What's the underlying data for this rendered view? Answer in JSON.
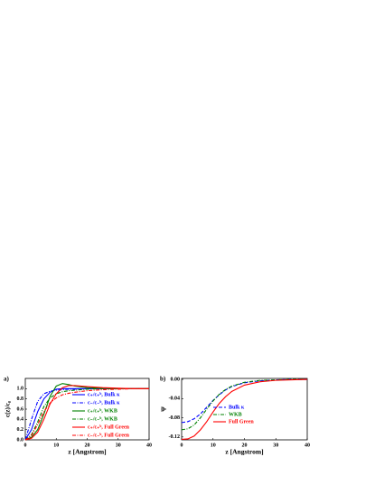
{
  "chart_data": [
    {
      "type": "line",
      "panel_label": "a)",
      "xlabel": "z [Angstrom]",
      "ylabel": "c(z)/c₀",
      "x": [
        0,
        2,
        4,
        6,
        8,
        10,
        12,
        14,
        16,
        20,
        25,
        30,
        35,
        40
      ],
      "xlim": [
        0,
        40
      ],
      "xticks": [
        0,
        10,
        20,
        30,
        40
      ],
      "ylim": [
        0,
        1.2
      ],
      "yticks": [
        {
          "value": 0,
          "label": "0.0"
        },
        0.2,
        0.4,
        0.6,
        0.8,
        {
          "value": 1,
          "label": "1.0"
        }
      ],
      "legend": "center",
      "series": [
        {
          "name": "c₊/c₊ᵇ, Bulk κ",
          "color": "#0000ff",
          "dash": "solid",
          "values": [
            0,
            0.2,
            0.55,
            0.8,
            0.93,
            0.99,
            1.0,
            1.0,
            1.0,
            1.0,
            1.0,
            1.0,
            1.0,
            1.0
          ]
        },
        {
          "name": "c₋/c₋ᵇ, Bulk κ",
          "color": "#0000ff",
          "dash": "dashdot",
          "values": [
            0,
            0.4,
            0.75,
            0.9,
            0.95,
            0.97,
            0.98,
            0.99,
            0.99,
            1.0,
            1.0,
            1.0,
            1.0,
            1.0
          ]
        },
        {
          "name": "c₊/c₊ᵇ, WKB",
          "color": "#008000",
          "dash": "solid",
          "values": [
            0,
            0.05,
            0.2,
            0.5,
            0.85,
            1.05,
            1.1,
            1.08,
            1.05,
            1.02,
            1.01,
            1.0,
            1.0,
            1.0
          ]
        },
        {
          "name": "c₋/c₋ᵇ, WKB",
          "color": "#008000",
          "dash": "dashdot",
          "values": [
            0,
            0.1,
            0.35,
            0.65,
            0.82,
            0.9,
            0.94,
            0.96,
            0.97,
            0.99,
            1.0,
            1.0,
            1.0,
            1.0
          ]
        },
        {
          "name": "c₊/c₊ᵇ, Full Green",
          "color": "#ff0000",
          "dash": "solid",
          "values": [
            0,
            0.03,
            0.15,
            0.4,
            0.7,
            0.9,
            1.02,
            1.06,
            1.06,
            1.04,
            1.02,
            1.01,
            1.0,
            1.0
          ]
        },
        {
          "name": "c₋/c₋ᵇ, Full Green",
          "color": "#ff0000",
          "dash": "dashdot",
          "values": [
            0,
            0.08,
            0.3,
            0.55,
            0.72,
            0.82,
            0.88,
            0.91,
            0.93,
            0.96,
            0.98,
            0.99,
            1.0,
            1.0
          ]
        }
      ]
    },
    {
      "type": "line",
      "panel_label": "b)",
      "xlabel": "z [Angstrom]",
      "ylabel": "Ψ",
      "x": [
        0,
        2,
        4,
        6,
        8,
        10,
        12,
        14,
        16,
        20,
        25,
        30,
        35,
        40
      ],
      "xlim": [
        0,
        40
      ],
      "xticks": [
        0,
        10,
        20,
        30,
        40
      ],
      "ylim": [
        -0.126,
        0.002
      ],
      "yticks": [
        {
          "value": 0,
          "label": "0.00"
        },
        -0.04,
        -0.08,
        -0.12
      ],
      "legend": "center right",
      "series": [
        {
          "name": "Bulk κ",
          "color": "#0000ff",
          "dash": "dash",
          "values": [
            -0.09,
            -0.088,
            -0.082,
            -0.072,
            -0.058,
            -0.044,
            -0.032,
            -0.022,
            -0.015,
            -0.007,
            -0.003,
            -0.001,
            0,
            0
          ]
        },
        {
          "name": "WKB",
          "color": "#008000",
          "dash": "dashdot",
          "values": [
            -0.105,
            -0.103,
            -0.095,
            -0.08,
            -0.062,
            -0.045,
            -0.031,
            -0.021,
            -0.014,
            -0.006,
            -0.002,
            -0.001,
            0,
            0
          ]
        },
        {
          "name": "Full Green",
          "color": "#ff0000",
          "dash": "solid",
          "values": [
            -0.125,
            -0.124,
            -0.118,
            -0.105,
            -0.088,
            -0.068,
            -0.05,
            -0.036,
            -0.025,
            -0.012,
            -0.005,
            -0.002,
            -0.001,
            0
          ]
        }
      ]
    }
  ]
}
